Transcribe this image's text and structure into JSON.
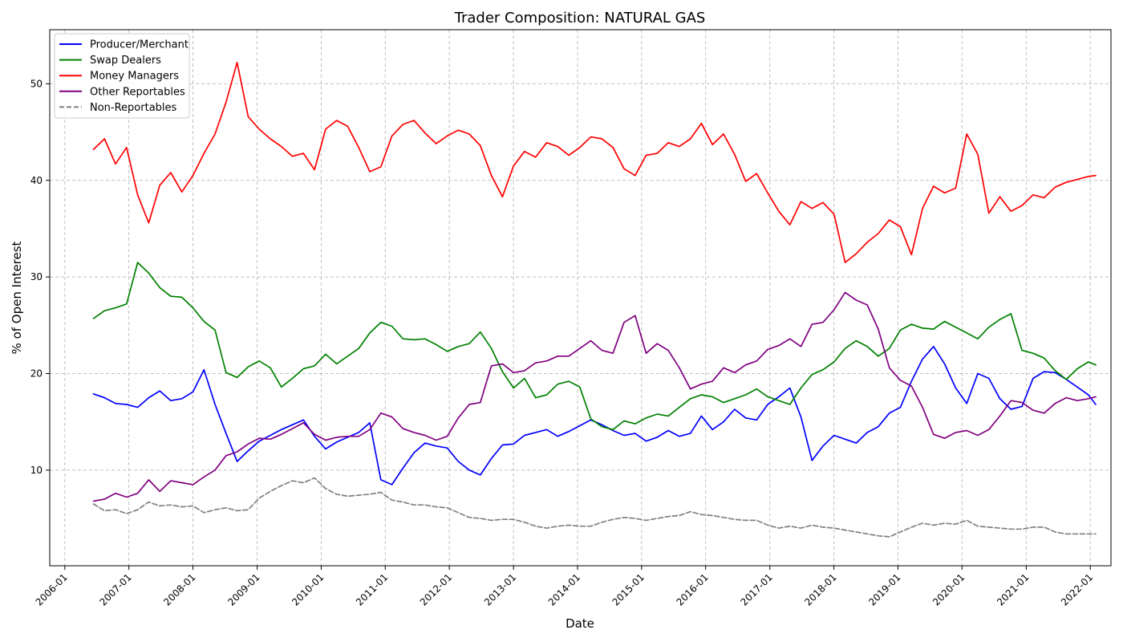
{
  "chart_data": {
    "type": "line",
    "title": "Trader Composition: NATURAL GAS",
    "xlabel": "Date",
    "ylabel": "% of Open Interest",
    "x_range": [
      "2005-10-07",
      "2022-04-29"
    ],
    "ylim": [
      0.1,
      55.6
    ],
    "grid": true,
    "legend_position": "top-left",
    "x_ticks": [
      "2006-01",
      "2007-01",
      "2008-01",
      "2009-01",
      "2010-01",
      "2011-01",
      "2012-01",
      "2013-01",
      "2014-01",
      "2015-01",
      "2016-01",
      "2017-01",
      "2018-01",
      "2019-01",
      "2020-01",
      "2021-01",
      "2022-01"
    ],
    "y_ticks": [
      10,
      20,
      30,
      40,
      50
    ],
    "x": [
      "2006-06-13",
      "2006-08-15",
      "2006-10-17",
      "2006-12-19",
      "2007-02-20",
      "2007-04-24",
      "2007-06-26",
      "2007-08-28",
      "2007-10-30",
      "2008-01-01",
      "2008-03-04",
      "2008-05-06",
      "2008-07-08",
      "2008-09-09",
      "2008-11-11",
      "2009-01-13",
      "2009-03-17",
      "2009-05-19",
      "2009-07-21",
      "2009-09-22",
      "2009-11-24",
      "2010-01-26",
      "2010-03-30",
      "2010-06-01",
      "2010-08-03",
      "2010-10-05",
      "2010-12-07",
      "2011-02-08",
      "2011-04-12",
      "2011-06-14",
      "2011-08-16",
      "2011-10-18",
      "2011-12-20",
      "2012-02-21",
      "2012-04-24",
      "2012-06-26",
      "2012-08-28",
      "2012-10-30",
      "2013-01-01",
      "2013-03-05",
      "2013-05-07",
      "2013-07-09",
      "2013-09-10",
      "2013-11-12",
      "2014-01-14",
      "2014-03-18",
      "2014-05-20",
      "2014-07-22",
      "2014-09-23",
      "2014-11-25",
      "2015-01-27",
      "2015-03-31",
      "2015-06-02",
      "2015-08-04",
      "2015-10-06",
      "2015-12-08",
      "2016-02-09",
      "2016-04-12",
      "2016-06-14",
      "2016-08-16",
      "2016-10-18",
      "2016-12-20",
      "2017-02-21",
      "2017-04-25",
      "2017-06-27",
      "2017-08-29",
      "2017-10-31",
      "2018-01-02",
      "2018-03-06",
      "2018-05-08",
      "2018-07-10",
      "2018-09-11",
      "2018-11-13",
      "2019-01-15",
      "2019-03-19",
      "2019-05-21",
      "2019-07-23",
      "2019-09-24",
      "2019-11-26",
      "2020-01-28",
      "2020-03-31",
      "2020-06-02",
      "2020-08-04",
      "2020-10-06",
      "2020-12-08",
      "2021-02-09",
      "2021-04-13",
      "2021-06-15",
      "2021-08-17",
      "2021-10-19",
      "2021-12-21",
      "2022-02-01"
    ],
    "series": [
      {
        "name": "Producer/Merchant",
        "color": "#0000ff",
        "dashed": false,
        "values": [
          17.9,
          17.5,
          16.9,
          16.8,
          16.5,
          17.5,
          18.2,
          17.2,
          17.4,
          18.1,
          20.4,
          16.8,
          13.8,
          10.9,
          12.0,
          13.0,
          13.6,
          14.2,
          14.7,
          15.2,
          13.5,
          12.2,
          12.9,
          13.4,
          13.9,
          14.9,
          9.0,
          8.5,
          10.2,
          11.8,
          12.8,
          12.5,
          12.3,
          10.9,
          10.0,
          9.5,
          11.2,
          12.6,
          12.7,
          13.6,
          13.9,
          14.2,
          13.5,
          14.0,
          14.6,
          15.2,
          14.7,
          14.1,
          13.6,
          13.8,
          13.0,
          13.4,
          14.1,
          13.5,
          13.8,
          15.6,
          14.2,
          15.0,
          16.3,
          15.4,
          15.2,
          16.8,
          17.6,
          18.5,
          15.5,
          11.0,
          12.5,
          13.6,
          13.2,
          12.8,
          13.9,
          14.5,
          15.9,
          16.5,
          19.2,
          21.5,
          22.8,
          21.0,
          18.5,
          16.9,
          20.0,
          19.5,
          17.4,
          16.3,
          16.6,
          19.5,
          20.2,
          20.1,
          19.4,
          18.6,
          17.8,
          16.8
        ]
      },
      {
        "name": "Swap Dealers",
        "color": "#008000",
        "dashed": false,
        "values": [
          25.7,
          26.5,
          26.8,
          27.2,
          31.5,
          30.4,
          28.9,
          28.0,
          27.9,
          26.8,
          25.4,
          24.5,
          20.1,
          19.6,
          20.7,
          21.3,
          20.6,
          18.6,
          19.5,
          20.5,
          20.8,
          22.0,
          21.0,
          21.8,
          22.6,
          24.2,
          25.3,
          24.9,
          23.6,
          23.5,
          23.6,
          23.0,
          22.3,
          22.8,
          23.1,
          24.3,
          22.6,
          20.2,
          18.5,
          19.5,
          17.5,
          17.8,
          18.9,
          19.2,
          18.6,
          15.3,
          14.5,
          14.2,
          15.1,
          14.8,
          15.4,
          15.8,
          15.6,
          16.5,
          17.4,
          17.8,
          17.6,
          17.0,
          17.4,
          17.8,
          18.4,
          17.6,
          17.2,
          16.8,
          18.5,
          19.9,
          20.4,
          21.2,
          22.6,
          23.4,
          22.8,
          21.8,
          22.6,
          24.5,
          25.1,
          24.7,
          24.6,
          25.4,
          24.8,
          24.2,
          23.6,
          24.8,
          25.6,
          26.2,
          22.4,
          22.1,
          21.6,
          20.3,
          19.4,
          20.5,
          21.2,
          20.9
        ]
      },
      {
        "name": "Money Managers",
        "color": "#ff0000",
        "dashed": false,
        "values": [
          43.2,
          44.3,
          41.7,
          43.4,
          38.5,
          35.6,
          39.5,
          40.8,
          38.8,
          40.5,
          42.8,
          44.8,
          48.1,
          52.2,
          46.6,
          45.3,
          44.3,
          43.5,
          42.5,
          42.8,
          41.1,
          45.3,
          46.2,
          45.6,
          43.4,
          40.9,
          41.4,
          44.6,
          45.8,
          46.2,
          44.9,
          43.8,
          44.6,
          45.2,
          44.8,
          43.6,
          40.5,
          38.3,
          41.5,
          43.0,
          42.4,
          43.9,
          43.5,
          42.6,
          43.4,
          44.5,
          44.3,
          43.4,
          41.2,
          40.5,
          42.6,
          42.8,
          43.9,
          43.5,
          44.3,
          45.9,
          43.7,
          44.8,
          42.7,
          39.9,
          40.7,
          38.7,
          36.8,
          35.4,
          37.8,
          37.1,
          37.7,
          36.5,
          31.5,
          32.4,
          33.6,
          34.5,
          35.9,
          35.2,
          32.3,
          37.1,
          39.4,
          38.7,
          39.2,
          44.8,
          42.7,
          36.6,
          38.3,
          36.8,
          37.4,
          38.5,
          38.2,
          39.3,
          39.8,
          40.1,
          40.4,
          40.5
        ]
      },
      {
        "name": "Other Reportables",
        "color": "#800080",
        "dashed": false,
        "values": [
          6.8,
          7.0,
          7.6,
          7.2,
          7.6,
          9.0,
          7.8,
          8.9,
          8.7,
          8.5,
          9.3,
          10.0,
          11.5,
          11.9,
          12.7,
          13.3,
          13.2,
          13.7,
          14.3,
          14.9,
          13.7,
          13.1,
          13.4,
          13.5,
          13.5,
          14.2,
          15.9,
          15.5,
          14.3,
          13.9,
          13.6,
          13.1,
          13.5,
          15.4,
          16.8,
          17.0,
          20.8,
          21.0,
          20.1,
          20.3,
          21.1,
          21.3,
          21.8,
          21.8,
          22.6,
          23.4,
          22.4,
          22.1,
          25.3,
          26.0,
          22.1,
          23.1,
          22.4,
          20.6,
          18.4,
          18.9,
          19.2,
          20.6,
          20.1,
          20.9,
          21.3,
          22.5,
          22.9,
          23.6,
          22.8,
          25.1,
          25.3,
          26.6,
          28.4,
          27.6,
          27.1,
          24.6,
          20.6,
          19.3,
          18.7,
          16.5,
          13.7,
          13.3,
          13.9,
          14.1,
          13.6,
          14.2,
          15.6,
          17.2,
          17.0,
          16.2,
          15.9,
          16.9,
          17.5,
          17.2,
          17.4,
          17.6
        ]
      },
      {
        "name": "Non-Reportables",
        "color": "#808080",
        "dashed": true,
        "values": [
          6.5,
          5.8,
          5.9,
          5.5,
          5.9,
          6.7,
          6.3,
          6.4,
          6.2,
          6.3,
          5.6,
          5.9,
          6.1,
          5.8,
          5.9,
          7.1,
          7.8,
          8.4,
          8.9,
          8.7,
          9.2,
          8.1,
          7.5,
          7.3,
          7.4,
          7.5,
          7.7,
          6.9,
          6.7,
          6.4,
          6.4,
          6.2,
          6.1,
          5.6,
          5.1,
          5.0,
          4.8,
          4.9,
          4.9,
          4.6,
          4.2,
          4.0,
          4.2,
          4.3,
          4.2,
          4.2,
          4.6,
          4.9,
          5.1,
          5.0,
          4.8,
          5.0,
          5.2,
          5.3,
          5.7,
          5.4,
          5.3,
          5.1,
          4.9,
          4.8,
          4.8,
          4.3,
          4.0,
          4.2,
          4.0,
          4.3,
          4.1,
          4.0,
          3.8,
          3.6,
          3.4,
          3.2,
          3.1,
          3.6,
          4.1,
          4.5,
          4.3,
          4.5,
          4.4,
          4.8,
          4.2,
          4.1,
          4.0,
          3.9,
          3.9,
          4.1,
          4.1,
          3.6,
          3.4,
          3.4,
          3.4,
          3.4
        ]
      }
    ]
  }
}
